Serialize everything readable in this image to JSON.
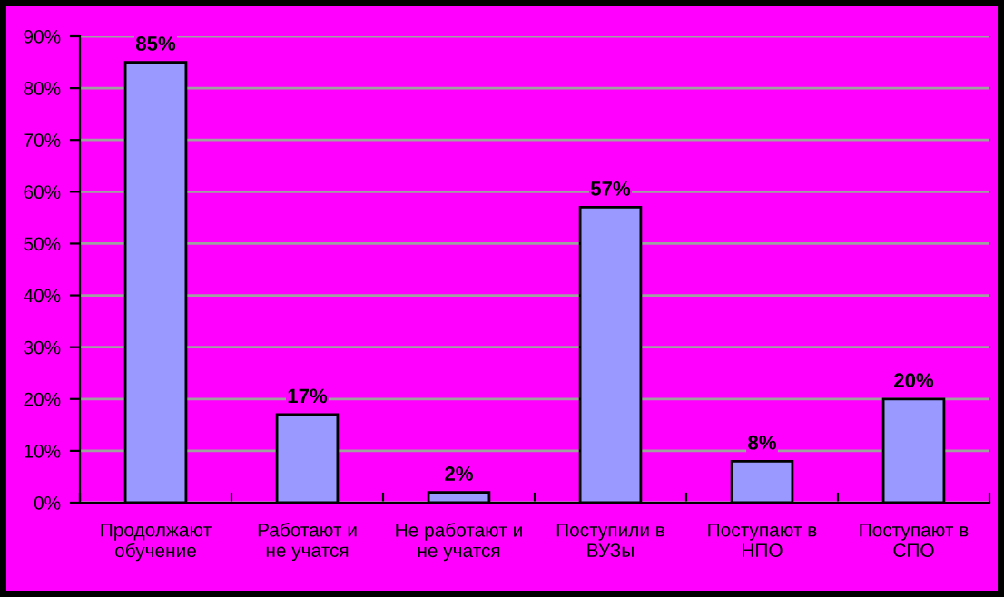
{
  "chart_data": {
    "type": "bar",
    "categories": [
      "Продолжают\nобучение",
      "Работают и\nне учатся",
      "Не работают и\nне учатся",
      "Поступили в\nВУЗы",
      "Поступают в\nНПО",
      "Поступают в\nСПО"
    ],
    "values": [
      85,
      17,
      2,
      57,
      8,
      20
    ],
    "value_labels": [
      "85%",
      "17%",
      "2%",
      "57%",
      "8%",
      "20%"
    ],
    "color": "#9999ff",
    "ylim": [
      0,
      90
    ],
    "yticks": [
      {
        "value": 0,
        "label": "0%"
      },
      {
        "value": 10,
        "label": "10%"
      },
      {
        "value": 20,
        "label": "20%"
      },
      {
        "value": 30,
        "label": "30%"
      },
      {
        "value": 40,
        "label": "40%"
      },
      {
        "value": 50,
        "label": "50%"
      },
      {
        "value": 60,
        "label": "60%"
      },
      {
        "value": 70,
        "label": "70%"
      },
      {
        "value": 80,
        "label": "80%"
      },
      {
        "value": 90,
        "label": "90%"
      }
    ],
    "grid": "y"
  }
}
